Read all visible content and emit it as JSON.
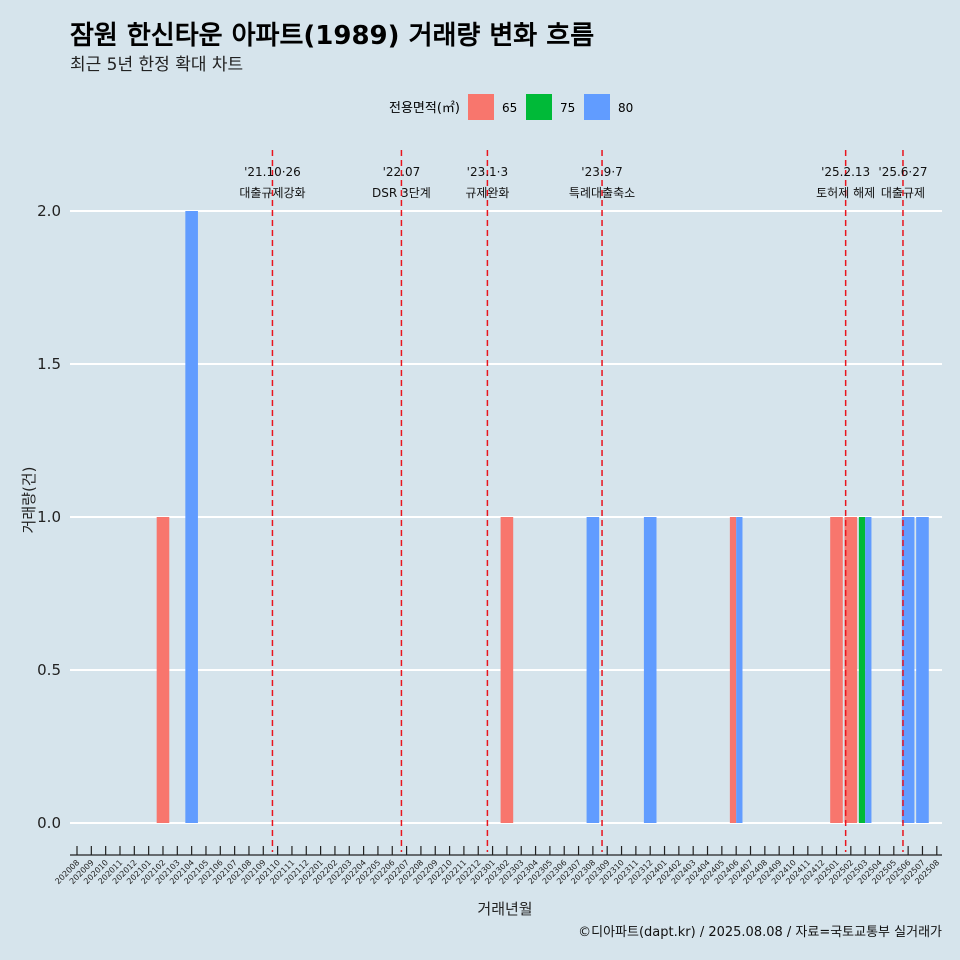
{
  "chart_data": {
    "type": "bar",
    "title": "잠원 한신타운 아파트(1989) 거래량 변화 흐름",
    "subtitle": "최근 5년 한정 확대 차트",
    "xlabel": "거래년월",
    "ylabel": "거래량(건)",
    "ylim": [
      0,
      2.0
    ],
    "yticks": [
      "0.0",
      "0.5",
      "1.0",
      "1.5",
      "2.0"
    ],
    "grid": true,
    "legend": {
      "title": "전용면적(㎡)",
      "position": "top",
      "entries": [
        {
          "label": "65",
          "color": "#f8766d"
        },
        {
          "label": "75",
          "color": "#00ba38"
        },
        {
          "label": "80",
          "color": "#619cff"
        }
      ]
    },
    "categories": [
      "202008",
      "202009",
      "202010",
      "202011",
      "202012",
      "202101",
      "202102",
      "202103",
      "202104",
      "202105",
      "202106",
      "202107",
      "202108",
      "202109",
      "202110",
      "202111",
      "202112",
      "202201",
      "202202",
      "202203",
      "202204",
      "202205",
      "202206",
      "202207",
      "202208",
      "202209",
      "202210",
      "202211",
      "202212",
      "202301",
      "202302",
      "202303",
      "202304",
      "202305",
      "202306",
      "202307",
      "202308",
      "202309",
      "202310",
      "202311",
      "202312",
      "202401",
      "202402",
      "202403",
      "202404",
      "202405",
      "202406",
      "202407",
      "202408",
      "202409",
      "202410",
      "202411",
      "202412",
      "202501",
      "202502",
      "202503",
      "202504",
      "202505",
      "202506",
      "202507",
      "202508"
    ],
    "bars": [
      {
        "month": "202102",
        "area": "65",
        "value": 1
      },
      {
        "month": "202104",
        "area": "80",
        "value": 2
      },
      {
        "month": "202302",
        "area": "65",
        "value": 1
      },
      {
        "month": "202308",
        "area": "80",
        "value": 1
      },
      {
        "month": "202312",
        "area": "80",
        "value": 1
      },
      {
        "month": "202406",
        "area": "65",
        "value": 1
      },
      {
        "month": "202406",
        "area": "80",
        "value": 1
      },
      {
        "month": "202501",
        "area": "65",
        "value": 1
      },
      {
        "month": "202502",
        "area": "65",
        "value": 1
      },
      {
        "month": "202503",
        "area": "75",
        "value": 1
      },
      {
        "month": "202503",
        "area": "80",
        "value": 1
      },
      {
        "month": "202506",
        "area": "80",
        "value": 1
      },
      {
        "month": "202507",
        "area": "80",
        "value": 1
      }
    ],
    "annotations": [
      {
        "month": "202110",
        "date": "'21.10·26",
        "label": "대출규제강화"
      },
      {
        "month": "202207",
        "date": "'22.07",
        "label": "DSR 3단계"
      },
      {
        "month": "202301",
        "date": "'23.1·3",
        "label": "규제완화"
      },
      {
        "month": "202309",
        "date": "'23.9·7",
        "label": "특례대출축소"
      },
      {
        "month": "202502",
        "date": "'25.2.13",
        "label": "토허제 해제"
      },
      {
        "month": "202506",
        "date": "'25.6·27",
        "label": "대출규제"
      }
    ],
    "caption": "©디아파트(dapt.kr) / 2025.08.08 / 자료=국토교통부 실거래가"
  }
}
